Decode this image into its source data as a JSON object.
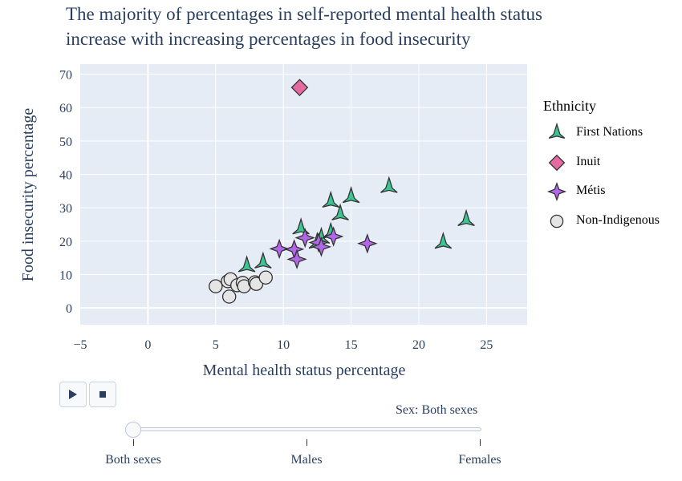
{
  "chart_data": {
    "type": "scatter",
    "title": "The majority of percentages in self-reported mental health status\n increase with increasing percentages in food insecurity",
    "xlabel": "Mental health status percentage",
    "ylabel": "Food insecurity percentage",
    "xlim": [
      -5,
      28
    ],
    "ylim": [
      -5,
      73
    ],
    "xticks": [
      -5,
      0,
      5,
      10,
      15,
      20,
      25
    ],
    "yticks": [
      0,
      10,
      20,
      30,
      40,
      50,
      60,
      70
    ],
    "xtick_labels": [
      "−5",
      "0",
      "5",
      "10",
      "15",
      "20",
      "25"
    ],
    "ytick_labels": [
      "0",
      "10",
      "20",
      "30",
      "40",
      "50",
      "60",
      "70"
    ],
    "grid": true,
    "legend": {
      "title": "Ethnicity",
      "placement": "right"
    },
    "series": [
      {
        "name": "First Nations",
        "marker": "triangle-up",
        "color": "#3dc493",
        "points": [
          [
            7.3,
            12.5
          ],
          [
            8.5,
            13.6
          ],
          [
            11.3,
            23.8
          ],
          [
            13.5,
            31.8
          ],
          [
            15.0,
            33.2
          ],
          [
            14.2,
            28.0
          ],
          [
            12.8,
            21.0
          ],
          [
            13.5,
            22.5
          ],
          [
            17.8,
            36.2
          ],
          [
            21.8,
            19.5
          ],
          [
            23.5,
            26.3
          ],
          [
            12.5,
            19.5
          ]
        ]
      },
      {
        "name": "Inuit",
        "marker": "diamond",
        "color": "#e66aa0",
        "points": [
          [
            11.2,
            66.0
          ]
        ]
      },
      {
        "name": "Métis",
        "marker": "star4",
        "color": "#b267e8",
        "points": [
          [
            9.7,
            17.7
          ],
          [
            10.8,
            17.6
          ],
          [
            11.0,
            14.6
          ],
          [
            11.6,
            21.0
          ],
          [
            12.6,
            19.6
          ],
          [
            12.8,
            18.3
          ],
          [
            13.7,
            21.4
          ],
          [
            16.2,
            19.3
          ]
        ]
      },
      {
        "name": "Non-Indigenous",
        "marker": "circle",
        "color": "#e5e5e5",
        "points": [
          [
            5.0,
            6.5
          ],
          [
            5.9,
            8.0
          ],
          [
            6.1,
            8.6
          ],
          [
            6.0,
            3.4
          ],
          [
            6.6,
            6.8
          ],
          [
            7.0,
            7.5
          ],
          [
            7.1,
            6.5
          ],
          [
            7.9,
            7.7
          ],
          [
            8.0,
            7.2
          ],
          [
            8.7,
            9.1
          ]
        ]
      }
    ]
  },
  "animation": {
    "play_icon": "play-icon",
    "stop_icon": "stop-icon",
    "current_prefix": "Sex: ",
    "current_value": "Both sexes",
    "steps": [
      "Both sexes",
      "Males",
      "Females"
    ],
    "active_step": 0
  }
}
